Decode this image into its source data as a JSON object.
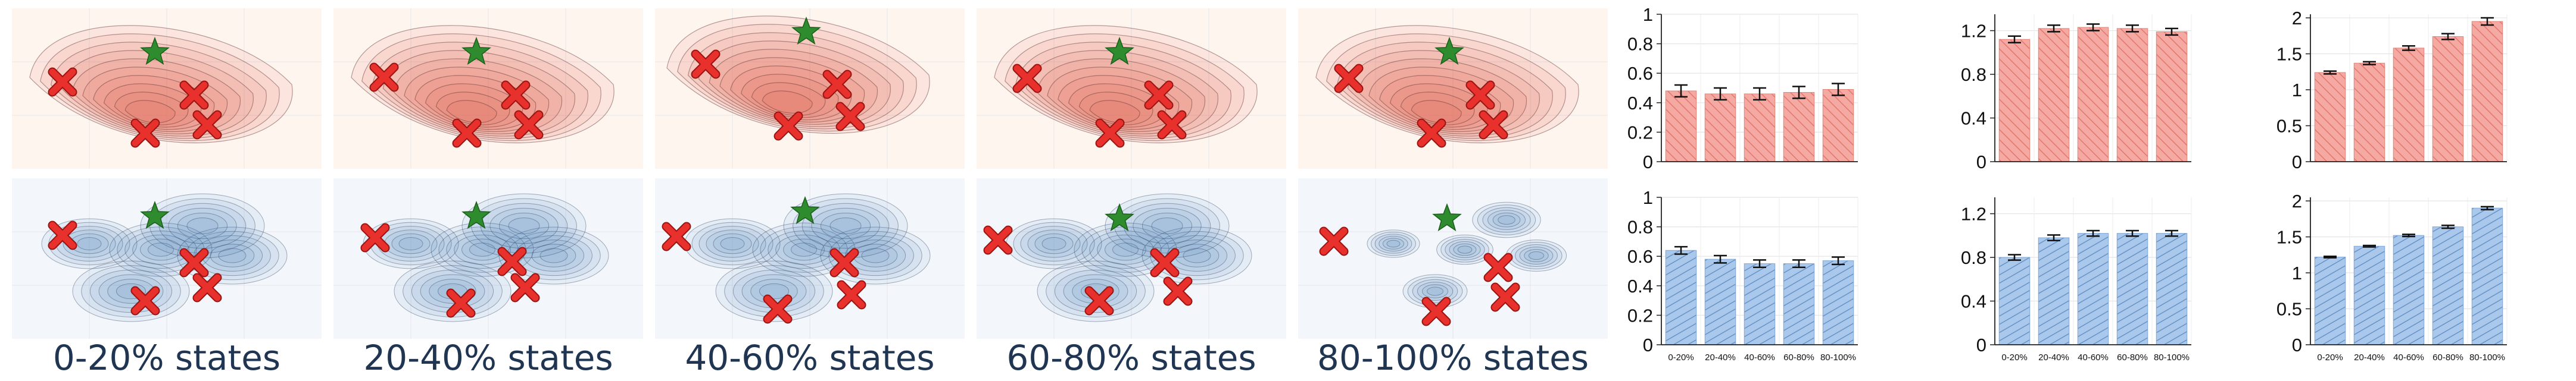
{
  "colors": {
    "red_panel_bg": "#fff5ef",
    "blue_panel_bg": "#f3f7fc",
    "red_bar": "#f4a9a2",
    "blue_bar": "#a9c8ec",
    "red_contour": "#e04a3c",
    "blue_contour": "#2f6fb3",
    "marker_x": "#e8302c",
    "marker_star": "#2e8b2e",
    "label_text": "#1f3552"
  },
  "state_panels": [
    {
      "label": "0-20% states"
    },
    {
      "label": "20-40% states"
    },
    {
      "label": "40-60% states"
    },
    {
      "label": "60-80% states"
    },
    {
      "label": "80-100% states"
    }
  ],
  "chart_data": [
    {
      "type": "bar",
      "row": "top",
      "color": "red",
      "categories": [
        "0-20%",
        "20-40%",
        "40-60%",
        "60-80%",
        "80-100%"
      ],
      "show_x_labels": false,
      "values": [
        0.48,
        0.46,
        0.46,
        0.47,
        0.49
      ],
      "errors": [
        0.04,
        0.04,
        0.04,
        0.04,
        0.04
      ],
      "ylim": [
        0,
        1
      ],
      "yticks": [
        0,
        0.2,
        0.4,
        0.6,
        0.8,
        1
      ],
      "ytick_labels": [
        "0",
        "0.2",
        "0.4",
        "0.6",
        "0.8",
        "1"
      ],
      "title": "",
      "xlabel": "",
      "ylabel": ""
    },
    {
      "type": "bar",
      "row": "top",
      "color": "red",
      "categories": [
        "0-20%",
        "20-40%",
        "40-60%",
        "60-80%",
        "80-100%"
      ],
      "show_x_labels": false,
      "values": [
        1.12,
        1.22,
        1.23,
        1.22,
        1.19
      ],
      "errors": [
        0.03,
        0.03,
        0.03,
        0.03,
        0.03
      ],
      "ylim": [
        0,
        1.35
      ],
      "yticks": [
        0,
        0.4,
        0.8,
        1.2
      ],
      "ytick_labels": [
        "0",
        "0.4",
        "0.8",
        "1.2"
      ],
      "title": "",
      "xlabel": "",
      "ylabel": ""
    },
    {
      "type": "bar",
      "row": "top",
      "color": "red",
      "categories": [
        "0-20%",
        "20-40%",
        "40-60%",
        "60-80%",
        "80-100%"
      ],
      "show_x_labels": false,
      "values": [
        1.24,
        1.37,
        1.58,
        1.74,
        1.95
      ],
      "errors": [
        0.02,
        0.02,
        0.03,
        0.04,
        0.05
      ],
      "ylim": [
        0,
        2.05
      ],
      "yticks": [
        0,
        0.5,
        1,
        1.5,
        2
      ],
      "ytick_labels": [
        "0",
        "0.5",
        "1",
        "1.5",
        "2"
      ],
      "title": "",
      "xlabel": "",
      "ylabel": ""
    },
    {
      "type": "bar",
      "row": "bottom",
      "color": "blue",
      "categories": [
        "0-20%",
        "20-40%",
        "40-60%",
        "60-80%",
        "80-100%"
      ],
      "show_x_labels": true,
      "values": [
        0.64,
        0.58,
        0.55,
        0.55,
        0.57
      ],
      "errors": [
        0.025,
        0.025,
        0.025,
        0.025,
        0.025
      ],
      "ylim": [
        0,
        1
      ],
      "yticks": [
        0,
        0.2,
        0.4,
        0.6,
        0.8,
        1
      ],
      "ytick_labels": [
        "0",
        "0.2",
        "0.4",
        "0.6",
        "0.8",
        "1"
      ],
      "title": "",
      "xlabel": "",
      "ylabel": ""
    },
    {
      "type": "bar",
      "row": "bottom",
      "color": "blue",
      "categories": [
        "0-20%",
        "20-40%",
        "40-60%",
        "60-80%",
        "80-100%"
      ],
      "show_x_labels": true,
      "values": [
        0.8,
        0.98,
        1.02,
        1.02,
        1.02
      ],
      "errors": [
        0.025,
        0.025,
        0.025,
        0.025,
        0.025
      ],
      "ylim": [
        0,
        1.35
      ],
      "yticks": [
        0,
        0.4,
        0.8,
        1.2
      ],
      "ytick_labels": [
        "0",
        "0.4",
        "0.8",
        "1.2"
      ],
      "title": "",
      "xlabel": "",
      "ylabel": ""
    },
    {
      "type": "bar",
      "row": "bottom",
      "color": "blue",
      "categories": [
        "0-20%",
        "20-40%",
        "40-60%",
        "60-80%",
        "80-100%"
      ],
      "show_x_labels": true,
      "values": [
        1.22,
        1.37,
        1.52,
        1.64,
        1.9
      ],
      "errors": [
        0.01,
        0.01,
        0.015,
        0.02,
        0.02
      ],
      "ylim": [
        0,
        2.05
      ],
      "yticks": [
        0,
        0.5,
        1,
        1.5,
        2
      ],
      "ytick_labels": [
        "0",
        "0.5",
        "1",
        "1.5",
        "2"
      ],
      "title": "",
      "xlabel": "",
      "ylabel": ""
    }
  ]
}
